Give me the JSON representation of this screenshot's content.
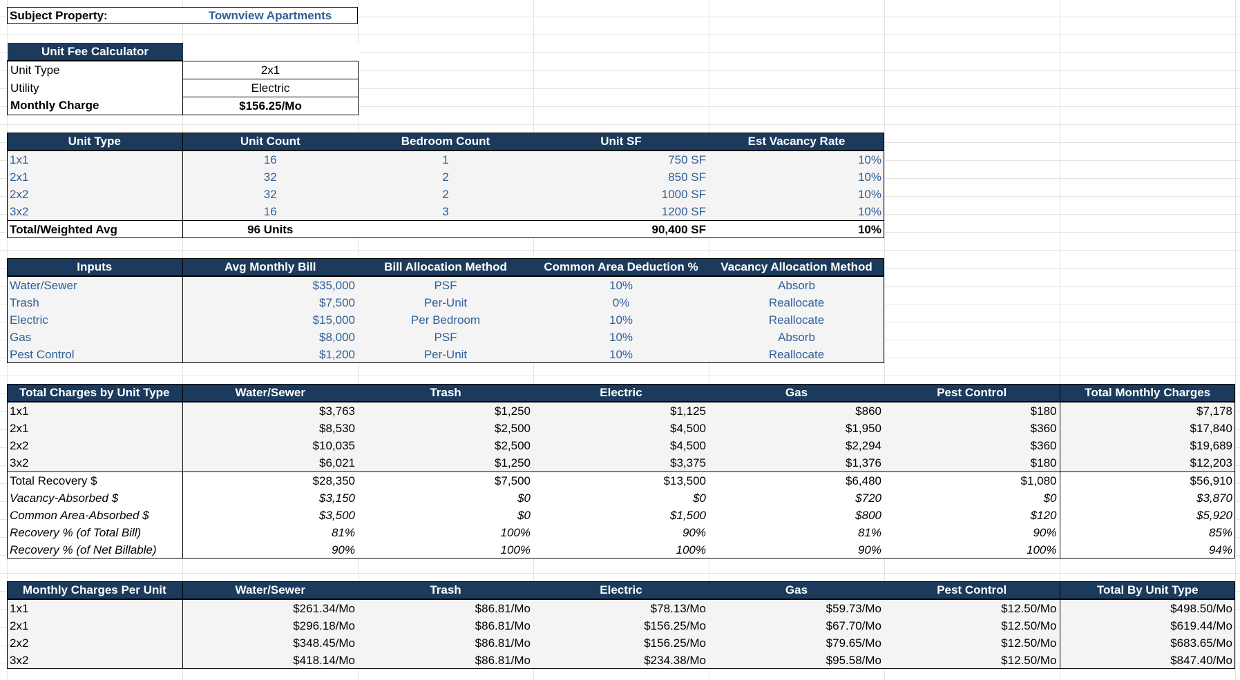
{
  "subject": {
    "label": "Subject Property:",
    "value": "Townview Apartments"
  },
  "calculator": {
    "title": "Unit Fee Calculator",
    "rows": [
      {
        "label": "Unit Type",
        "value": "2x1"
      },
      {
        "label": "Utility",
        "value": "Electric"
      },
      {
        "label": "Monthly Charge",
        "value": "$156.25/Mo"
      }
    ]
  },
  "units": {
    "headers": [
      "Unit Type",
      "Unit Count",
      "Bedroom Count",
      "Unit SF",
      "Est Vacancy Rate"
    ],
    "rows": [
      [
        "1x1",
        "16",
        "1",
        "750 SF",
        "10%"
      ],
      [
        "2x1",
        "32",
        "2",
        "850 SF",
        "10%"
      ],
      [
        "2x2",
        "32",
        "2",
        "1000 SF",
        "10%"
      ],
      [
        "3x2",
        "16",
        "3",
        "1200 SF",
        "10%"
      ]
    ],
    "total": [
      "Total/Weighted Avg",
      "96 Units",
      "",
      "90,400 SF",
      "10%"
    ]
  },
  "inputs": {
    "headers": [
      "Inputs",
      "Avg Monthly Bill",
      "Bill Allocation Method",
      "Common Area Deduction %",
      "Vacancy Allocation Method"
    ],
    "rows": [
      [
        "Water/Sewer",
        "$35,000",
        "PSF",
        "10%",
        "Absorb"
      ],
      [
        "Trash",
        "$7,500",
        "Per-Unit",
        "0%",
        "Reallocate"
      ],
      [
        "Electric",
        "$15,000",
        "Per Bedroom",
        "10%",
        "Reallocate"
      ],
      [
        "Gas",
        "$8,000",
        "PSF",
        "10%",
        "Absorb"
      ],
      [
        "Pest Control",
        "$1,200",
        "Per-Unit",
        "10%",
        "Reallocate"
      ]
    ]
  },
  "charges": {
    "headers": [
      "Total Charges by Unit Type",
      "Water/Sewer",
      "Trash",
      "Electric",
      "Gas",
      "Pest Control",
      "Total Monthly Charges"
    ],
    "rows": [
      [
        "1x1",
        "$3,763",
        "$1,250",
        "$1,125",
        "$860",
        "$180",
        "$7,178"
      ],
      [
        "2x1",
        "$8,530",
        "$2,500",
        "$4,500",
        "$1,950",
        "$360",
        "$17,840"
      ],
      [
        "2x2",
        "$10,035",
        "$2,500",
        "$4,500",
        "$2,294",
        "$360",
        "$19,689"
      ],
      [
        "3x2",
        "$6,021",
        "$1,250",
        "$3,375",
        "$1,376",
        "$180",
        "$12,203"
      ]
    ],
    "summary": [
      [
        "Total Recovery $",
        "$28,350",
        "$7,500",
        "$13,500",
        "$6,480",
        "$1,080",
        "$56,910"
      ],
      [
        "Vacancy-Absorbed $",
        "$3,150",
        "$0",
        "$0",
        "$720",
        "$0",
        "$3,870"
      ],
      [
        "Common Area-Absorbed $",
        "$3,500",
        "$0",
        "$1,500",
        "$800",
        "$120",
        "$5,920"
      ],
      [
        "Recovery % (of Total Bill)",
        "81%",
        "100%",
        "90%",
        "81%",
        "90%",
        "85%"
      ],
      [
        "Recovery % (of Net Billable)",
        "90%",
        "100%",
        "100%",
        "90%",
        "100%",
        "94%"
      ]
    ]
  },
  "perunit": {
    "headers": [
      "Monthly Charges Per Unit",
      "Water/Sewer",
      "Trash",
      "Electric",
      "Gas",
      "Pest Control",
      "Total By Unit Type"
    ],
    "rows": [
      [
        "1x1",
        "$261.34/Mo",
        "$86.81/Mo",
        "$78.13/Mo",
        "$59.73/Mo",
        "$12.50/Mo",
        "$498.50/Mo"
      ],
      [
        "2x1",
        "$296.18/Mo",
        "$86.81/Mo",
        "$156.25/Mo",
        "$67.70/Mo",
        "$12.50/Mo",
        "$619.44/Mo"
      ],
      [
        "2x2",
        "$348.45/Mo",
        "$86.81/Mo",
        "$156.25/Mo",
        "$79.65/Mo",
        "$12.50/Mo",
        "$683.65/Mo"
      ],
      [
        "3x2",
        "$418.14/Mo",
        "$86.81/Mo",
        "$234.38/Mo",
        "$95.58/Mo",
        "$12.50/Mo",
        "$847.40/Mo"
      ]
    ]
  }
}
